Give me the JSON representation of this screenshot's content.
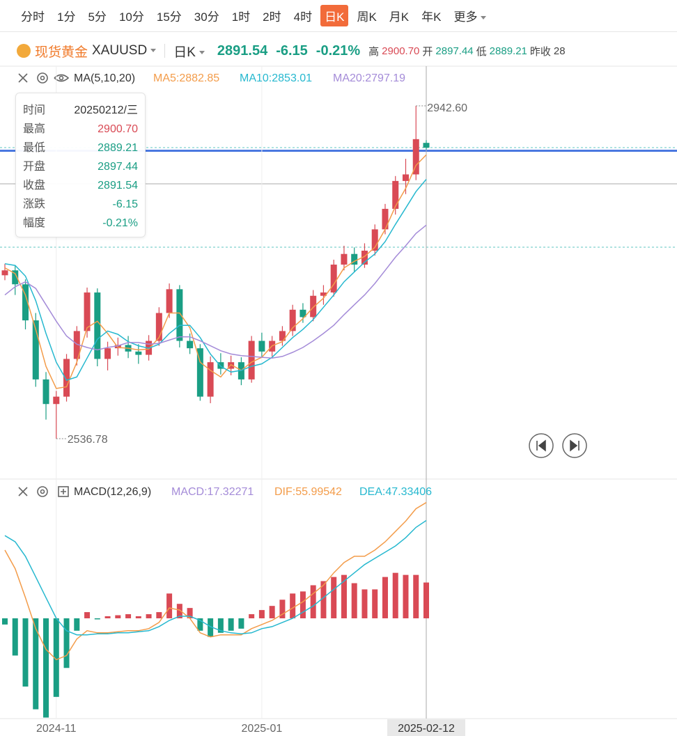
{
  "toolbar": {
    "periods": [
      "分时",
      "1分",
      "5分",
      "10分",
      "15分",
      "30分",
      "1时",
      "2时",
      "4时",
      "日K",
      "周K",
      "月K",
      "年K",
      "更多"
    ]
  },
  "quote": {
    "name": "现货黄金",
    "symbol": "XAUUSD",
    "period": "日K",
    "price": "2891.54",
    "change": "-6.15",
    "change_pct": "-0.21%",
    "high_label": "高",
    "high": "2900.70",
    "open_label": "开",
    "open": "2897.44",
    "low_label": "低",
    "low": "2889.21",
    "prev_label": "昨收",
    "prev": "28"
  },
  "tooltip": [
    {
      "label": "时间",
      "value": "20250212/三"
    },
    {
      "label": "最高",
      "value": "2900.70"
    },
    {
      "label": "最低",
      "value": "2889.21"
    },
    {
      "label": "开盘",
      "value": "2897.44"
    },
    {
      "label": "收盘",
      "value": "2891.54"
    },
    {
      "label": "涨跌",
      "value": "-6.15"
    },
    {
      "label": "幅度",
      "value": "-0.21%"
    }
  ],
  "chart_data": [
    {
      "type": "candlestick",
      "indicator": "MA(5,10,20)",
      "up_color": "#d94a55",
      "down_color": "#1a9e84",
      "categories": [
        null,
        null,
        null,
        null,
        null,
        "2024-11",
        null,
        null,
        null,
        null,
        null,
        null,
        null,
        null,
        null,
        null,
        null,
        null,
        null,
        null,
        null,
        null,
        null,
        null,
        null,
        "2025-01",
        null,
        null,
        null,
        null,
        null,
        null,
        null,
        null,
        null,
        null,
        null,
        null,
        null,
        null,
        null,
        "2025-02-12"
      ],
      "open": [
        2736,
        2742,
        2725,
        2681,
        2609,
        2579,
        2588,
        2634,
        2668,
        2715,
        2634,
        2647,
        2651,
        2643,
        2639,
        2656,
        2690,
        2719,
        2656,
        2647,
        2588,
        2630,
        2622,
        2630,
        2609,
        2656,
        2643,
        2656,
        2668,
        2694,
        2685,
        2711,
        2715,
        2749,
        2762,
        2749,
        2766,
        2792,
        2817,
        2851,
        2859,
        2897.44
      ],
      "high": [
        2750,
        2748,
        2731,
        2690,
        2618,
        2595,
        2640,
        2674,
        2721,
        2720,
        2655,
        2660,
        2662,
        2652,
        2663,
        2697,
        2726,
        2724,
        2665,
        2652,
        2637,
        2641,
        2638,
        2636,
        2662,
        2666,
        2662,
        2674,
        2700,
        2702,
        2718,
        2724,
        2755,
        2772,
        2770,
        2775,
        2798,
        2823,
        2857,
        2878,
        2942.6,
        2900.7
      ],
      "low": [
        2730,
        2712,
        2670,
        2600,
        2560,
        2536.78,
        2582,
        2626,
        2660,
        2625,
        2620,
        2638,
        2635,
        2628,
        2632,
        2650,
        2684,
        2648,
        2640,
        2583,
        2580,
        2615,
        2614,
        2602,
        2605,
        2636,
        2637,
        2650,
        2662,
        2678,
        2680,
        2700,
        2710,
        2742,
        2740,
        2745,
        2760,
        2786,
        2810,
        2835,
        2852,
        2889.21
      ],
      "close": [
        2742,
        2725,
        2681,
        2609,
        2579,
        2588,
        2634,
        2668,
        2715,
        2634,
        2647,
        2651,
        2643,
        2639,
        2656,
        2690,
        2719,
        2656,
        2647,
        2588,
        2630,
        2622,
        2630,
        2609,
        2656,
        2643,
        2656,
        2668,
        2694,
        2685,
        2711,
        2715,
        2749,
        2762,
        2749,
        2766,
        2792,
        2817,
        2851,
        2859,
        2902,
        2891.54
      ],
      "max_label": "2942.60",
      "min_label": "2536.78",
      "ylim": [
        2487.5,
        2991
      ],
      "series": [
        {
          "name": "MA5:2882.85",
          "color": "#f39c4a",
          "values": [
            2745,
            2738,
            2712,
            2670,
            2625,
            2598,
            2600,
            2630,
            2672,
            2680,
            2665,
            2648,
            2647,
            2645,
            2646,
            2660,
            2690,
            2690,
            2672,
            2630,
            2620,
            2612,
            2627,
            2620,
            2630,
            2636,
            2650,
            2655,
            2672,
            2683,
            2697,
            2708,
            2725,
            2745,
            2753,
            2759,
            2770,
            2792,
            2820,
            2842,
            2870,
            2882.85
          ]
        },
        {
          "name": "MA10:2853.01",
          "color": "#26b8cf",
          "values": [
            2750,
            2748,
            2735,
            2705,
            2665,
            2630,
            2608,
            2612,
            2635,
            2658,
            2668,
            2664,
            2655,
            2650,
            2647,
            2652,
            2665,
            2675,
            2675,
            2660,
            2640,
            2625,
            2618,
            2620,
            2625,
            2628,
            2636,
            2648,
            2660,
            2670,
            2682,
            2697,
            2712,
            2728,
            2740,
            2752,
            2762,
            2777,
            2798,
            2818,
            2838,
            2853.01
          ]
        },
        {
          "name": "MA20:2797.19",
          "color": "#a48bd8",
          "values": [
            2712,
            2722,
            2728,
            2720,
            2700,
            2680,
            2662,
            2652,
            2648,
            2645,
            2648,
            2650,
            2654,
            2654,
            2652,
            2653,
            2657,
            2661,
            2661,
            2656,
            2650,
            2644,
            2640,
            2638,
            2637,
            2636,
            2635,
            2637,
            2642,
            2648,
            2656,
            2665,
            2675,
            2688,
            2700,
            2712,
            2726,
            2742,
            2758,
            2772,
            2787,
            2797.19
          ]
        }
      ]
    },
    {
      "type": "macd",
      "indicator": "MACD(12,26,9)",
      "up_color": "#d94a55",
      "down_color": "#1a9e84",
      "ylim": [
        -48.5,
        65
      ],
      "series": [
        {
          "name": "MACD:17.32271",
          "color": "#a48bd8",
          "values": [
            -3,
            -18,
            -33,
            -44,
            -48,
            -38,
            -24,
            -6,
            3,
            -0.5,
            1,
            1.5,
            2,
            1,
            2,
            3,
            12,
            7,
            5,
            -6,
            -9,
            -7,
            -6,
            -5,
            2,
            4,
            6,
            9,
            12,
            13,
            16,
            18,
            20,
            21,
            17,
            14,
            14,
            20,
            22,
            21,
            21,
            17.32271
          ]
        },
        {
          "name": "DIF:55.99542",
          "color": "#f39c4a",
          "values": [
            33,
            24,
            10,
            -5,
            -15,
            -20,
            -18,
            -10,
            -6,
            -7,
            -7,
            -6.5,
            -6,
            -6,
            -5,
            -2,
            5,
            4,
            0,
            -7,
            -9,
            -8,
            -8,
            -8,
            -5,
            -3,
            -1,
            2,
            5,
            8,
            12,
            16,
            22,
            27,
            30,
            30,
            33,
            37,
            42,
            47,
            53,
            55.99542
          ]
        },
        {
          "name": "DEA:47.33406",
          "color": "#26b8cf",
          "values": [
            40,
            37,
            30,
            20,
            10,
            0,
            -6,
            -8,
            -8,
            -7.5,
            -7.5,
            -7,
            -7,
            -6.5,
            -6,
            -4,
            -1,
            1,
            1,
            -1,
            -4,
            -6,
            -7,
            -7.5,
            -7,
            -5,
            -4,
            -2,
            0,
            3,
            6,
            10,
            14,
            18,
            22,
            26,
            29,
            32,
            35,
            39,
            44,
            47.33406
          ]
        }
      ]
    }
  ]
}
